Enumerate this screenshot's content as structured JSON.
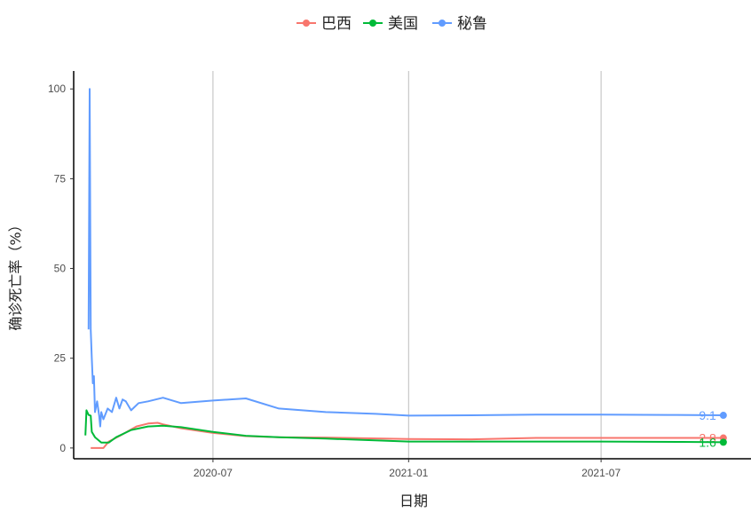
{
  "chart_data": {
    "type": "line",
    "xlabel": "日期",
    "ylabel": "确诊死亡率（%）",
    "x_ticks": [
      "2020-07",
      "2021-01",
      "2021-07"
    ],
    "y_ticks": [
      "0",
      "25",
      "50",
      "75",
      "100"
    ],
    "ylim": [
      -3,
      105
    ],
    "xlim": [
      "2020-02-21",
      "2021-11-19"
    ],
    "legend_position": "top",
    "grid": "vertical major only",
    "series": [
      {
        "name": "巴西",
        "color": "#F8766D",
        "end_label": "2.8",
        "points": [
          [
            "2020-03-08",
            0
          ],
          [
            "2020-03-20",
            0
          ],
          [
            "2020-03-25",
            1.8
          ],
          [
            "2020-04-05",
            3.5
          ],
          [
            "2020-04-20",
            6.0
          ],
          [
            "2020-05-01",
            6.8
          ],
          [
            "2020-05-10",
            7.0
          ],
          [
            "2020-05-15",
            6.6
          ],
          [
            "2020-06-01",
            5.5
          ],
          [
            "2020-07-01",
            4.2
          ],
          [
            "2020-08-01",
            3.3
          ],
          [
            "2020-09-01",
            3.0
          ],
          [
            "2020-10-15",
            2.9
          ],
          [
            "2021-01-01",
            2.5
          ],
          [
            "2021-03-01",
            2.4
          ],
          [
            "2021-05-01",
            2.8
          ],
          [
            "2021-07-01",
            2.8
          ],
          [
            "2021-09-01",
            2.8
          ],
          [
            "2021-10-24",
            2.8
          ]
        ]
      },
      {
        "name": "美国",
        "color": "#00BA38",
        "end_label": "1.6",
        "points": [
          [
            "2020-03-03",
            3.5
          ],
          [
            "2020-03-04",
            10.5
          ],
          [
            "2020-03-06",
            9.2
          ],
          [
            "2020-03-08",
            9.0
          ],
          [
            "2020-03-09",
            4.5
          ],
          [
            "2020-03-12",
            3.0
          ],
          [
            "2020-03-18",
            1.5
          ],
          [
            "2020-03-25",
            1.5
          ],
          [
            "2020-04-01",
            3.0
          ],
          [
            "2020-04-15",
            5.0
          ],
          [
            "2020-05-01",
            6.0
          ],
          [
            "2020-05-15",
            6.2
          ],
          [
            "2020-06-01",
            5.8
          ],
          [
            "2020-07-01",
            4.5
          ],
          [
            "2020-08-01",
            3.4
          ],
          [
            "2020-09-01",
            3.0
          ],
          [
            "2020-10-15",
            2.6
          ],
          [
            "2021-01-01",
            1.8
          ],
          [
            "2021-04-01",
            1.8
          ],
          [
            "2021-07-01",
            1.8
          ],
          [
            "2021-09-15",
            1.7
          ],
          [
            "2021-10-24",
            1.6
          ]
        ]
      },
      {
        "name": "秘鲁",
        "color": "#619CFF",
        "end_label": "9.1",
        "points": [
          [
            "2020-03-06",
            33
          ],
          [
            "2020-03-07",
            100
          ],
          [
            "2020-03-08",
            33
          ],
          [
            "2020-03-09",
            25
          ],
          [
            "2020-03-10",
            18
          ],
          [
            "2020-03-11",
            20
          ],
          [
            "2020-03-12",
            10
          ],
          [
            "2020-03-14",
            13
          ],
          [
            "2020-03-16",
            9
          ],
          [
            "2020-03-17",
            6
          ],
          [
            "2020-03-18",
            10
          ],
          [
            "2020-03-20",
            8
          ],
          [
            "2020-03-24",
            11
          ],
          [
            "2020-03-28",
            10
          ],
          [
            "2020-04-01",
            14
          ],
          [
            "2020-04-04",
            11
          ],
          [
            "2020-04-07",
            13.5
          ],
          [
            "2020-04-10",
            13
          ],
          [
            "2020-04-15",
            10.5
          ],
          [
            "2020-04-22",
            12.5
          ],
          [
            "2020-05-01",
            13
          ],
          [
            "2020-05-15",
            14
          ],
          [
            "2020-06-01",
            12.5
          ],
          [
            "2020-07-01",
            13.2
          ],
          [
            "2020-08-01",
            13.8
          ],
          [
            "2020-09-01",
            11
          ],
          [
            "2020-10-15",
            10
          ],
          [
            "2020-12-01",
            9.5
          ],
          [
            "2021-01-01",
            9
          ],
          [
            "2021-03-01",
            9.1
          ],
          [
            "2021-05-01",
            9.3
          ],
          [
            "2021-07-01",
            9.3
          ],
          [
            "2021-09-01",
            9.2
          ],
          [
            "2021-10-24",
            9.1
          ]
        ]
      }
    ]
  }
}
